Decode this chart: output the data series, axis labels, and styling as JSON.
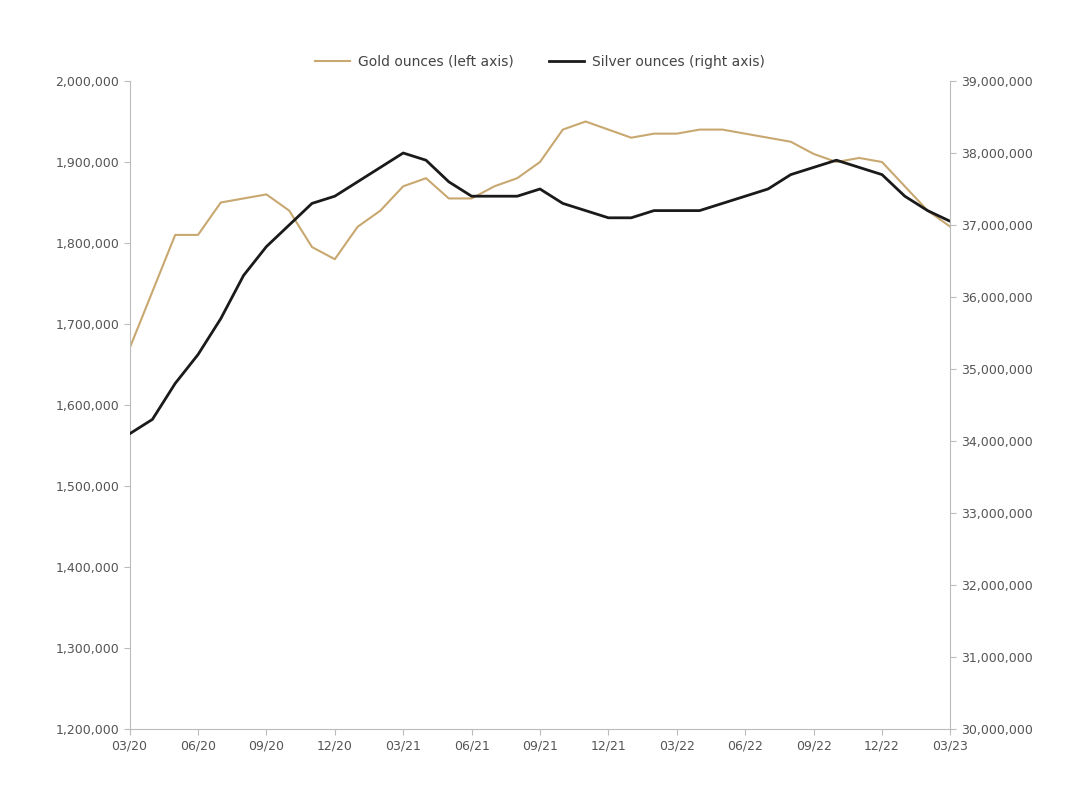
{
  "gold_color": "#C8A870",
  "silver_color": "#1a1a1a",
  "background_color": "#ffffff",
  "x_labels": [
    "03/20",
    "06/20",
    "09/20",
    "12/20",
    "03/21",
    "06/21",
    "09/21",
    "12/21",
    "03/22",
    "06/22",
    "09/22",
    "12/22",
    "03/23"
  ],
  "gold_ylim": [
    1200000,
    2000000
  ],
  "silver_ylim": [
    30000000,
    39000000
  ],
  "gold_yticks": [
    1200000,
    1300000,
    1400000,
    1500000,
    1600000,
    1700000,
    1800000,
    1900000,
    2000000
  ],
  "silver_yticks": [
    30000000,
    31000000,
    32000000,
    33000000,
    34000000,
    35000000,
    36000000,
    37000000,
    38000000,
    39000000
  ],
  "gold_vals": [
    1670000,
    1740000,
    1810000,
    1810000,
    1850000,
    1855000,
    1860000,
    1840000,
    1795000,
    1780000,
    1820000,
    1840000,
    1870000,
    1880000,
    1855000,
    1855000,
    1870000,
    1880000,
    1900000,
    1940000,
    1950000,
    1940000,
    1930000,
    1935000,
    1935000,
    1940000,
    1940000,
    1935000,
    1930000,
    1925000,
    1910000,
    1900000,
    1905000,
    1900000,
    1870000,
    1840000,
    1820000
  ],
  "silver_vals": [
    34100000,
    34300000,
    34800000,
    35200000,
    35700000,
    36300000,
    36700000,
    37000000,
    37300000,
    37400000,
    37600000,
    37800000,
    38000000,
    37900000,
    37600000,
    37400000,
    37400000,
    37400000,
    37500000,
    37300000,
    37200000,
    37100000,
    37100000,
    37200000,
    37200000,
    37200000,
    37300000,
    37400000,
    37500000,
    37700000,
    37800000,
    37900000,
    37800000,
    37700000,
    37400000,
    37200000,
    37050000
  ],
  "legend_gold": "Gold ounces (left axis)",
  "legend_silver": "Silver ounces (right axis)"
}
